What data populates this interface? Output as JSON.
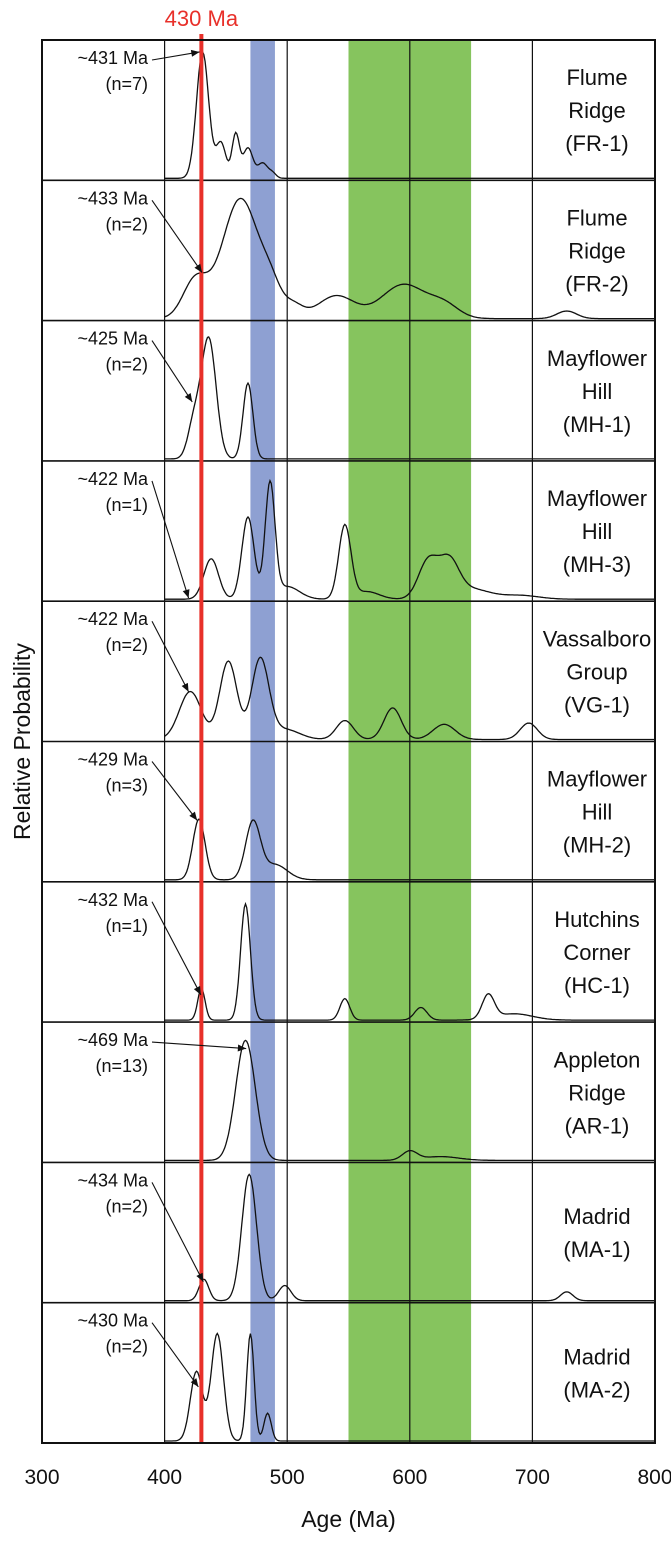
{
  "chart_data": {
    "type": "line",
    "xlabel": "Age (Ma)",
    "ylabel": "Relative Probability",
    "xlim": [
      300,
      800
    ],
    "x_ticks": [
      "300",
      "400",
      "500",
      "600",
      "700",
      "800"
    ],
    "grid": "vertical lines at 400, 500, 600, 700 Ma",
    "reference_line": {
      "x": 430,
      "label": "430 Ma",
      "color": "#e8302a"
    },
    "shaded_bands": [
      {
        "from": 470,
        "to": 490,
        "color": "#8ea0d2"
      },
      {
        "from": 550,
        "to": 650,
        "color": "#86c45e"
      }
    ],
    "series": [
      {
        "label_lines": [
          "Flume",
          "Ridge",
          "(FR-1)"
        ],
        "annotation": [
          "~431 Ma",
          "(n=7)"
        ],
        "annotation_target": 431,
        "peaks": [
          [
            431,
            1.0,
            5
          ],
          [
            446,
            0.28,
            4
          ],
          [
            458,
            0.35,
            3
          ],
          [
            468,
            0.24,
            4
          ],
          [
            480,
            0.12,
            4
          ],
          [
            488,
            0.04,
            3
          ]
        ]
      },
      {
        "label_lines": [
          "Flume",
          "Ridge",
          "(FR-2)"
        ],
        "annotation": [
          "~433 Ma",
          "(n=2)"
        ],
        "annotation_target": 433,
        "peaks": [
          [
            425,
            0.3,
            10
          ],
          [
            462,
            0.95,
            15
          ],
          [
            487,
            0.18,
            8
          ],
          [
            505,
            0.1,
            8
          ],
          [
            540,
            0.18,
            15
          ],
          [
            595,
            0.27,
            18
          ],
          [
            628,
            0.1,
            12
          ],
          [
            728,
            0.06,
            8
          ]
        ]
      },
      {
        "label_lines": [
          "Mayflower",
          "Hill",
          "(MH-1)"
        ],
        "annotation": [
          "~425 Ma",
          "(n=2)"
        ],
        "annotation_target": 425,
        "peaks": [
          [
            424,
            0.28,
            5
          ],
          [
            436,
            0.95,
            6
          ],
          [
            468,
            0.6,
            4
          ]
        ]
      },
      {
        "label_lines": [
          "Mayflower",
          "Hill",
          "(MH-3)"
        ],
        "annotation": [
          "~422 Ma",
          "(n=1)"
        ],
        "annotation_target": 422,
        "peaks": [
          [
            438,
            0.32,
            6
          ],
          [
            468,
            0.65,
            5
          ],
          [
            486,
            0.9,
            4
          ],
          [
            500,
            0.1,
            10
          ],
          [
            547,
            0.58,
            5
          ],
          [
            565,
            0.06,
            10
          ],
          [
            615,
            0.3,
            8
          ],
          [
            632,
            0.28,
            8
          ],
          [
            650,
            0.08,
            15
          ],
          [
            690,
            0.03,
            15
          ]
        ]
      },
      {
        "label_lines": [
          "Vassalboro",
          "Group",
          "(VG-1)"
        ],
        "annotation": [
          "~422 Ma",
          "(n=2)"
        ],
        "annotation_target": 422,
        "peaks": [
          [
            421,
            0.38,
            9
          ],
          [
            452,
            0.62,
            7
          ],
          [
            478,
            0.63,
            7
          ],
          [
            498,
            0.08,
            12
          ],
          [
            547,
            0.15,
            7
          ],
          [
            586,
            0.25,
            7
          ],
          [
            628,
            0.12,
            9
          ],
          [
            697,
            0.13,
            7
          ]
        ]
      },
      {
        "label_lines": [
          "Mayflower",
          "Hill",
          "(MH-2)"
        ],
        "annotation": [
          "~429 Ma",
          "(n=3)"
        ],
        "annotation_target": 429,
        "peaks": [
          [
            428,
            0.48,
            5
          ],
          [
            472,
            0.45,
            6
          ],
          [
            490,
            0.12,
            10
          ]
        ]
      },
      {
        "label_lines": [
          "Hutchins",
          "Corner",
          "(HC-1)"
        ],
        "annotation": [
          "~432 Ma",
          "(n=1)"
        ],
        "annotation_target": 432,
        "peaks": [
          [
            430,
            0.25,
            3
          ],
          [
            466,
            0.92,
            4
          ],
          [
            547,
            0.17,
            4
          ],
          [
            609,
            0.1,
            5
          ],
          [
            664,
            0.19,
            5
          ],
          [
            685,
            0.05,
            15
          ]
        ]
      },
      {
        "label_lines": [
          "Appleton",
          "Ridge",
          "(AR-1)"
        ],
        "annotation": [
          "~469 Ma",
          "(n=13)"
        ],
        "annotation_target": 469,
        "peaks": [
          [
            466,
            0.95,
            8
          ],
          [
            600,
            0.07,
            6
          ],
          [
            625,
            0.03,
            15
          ]
        ]
      },
      {
        "label_lines": [
          "Madrid",
          "(MA-1)"
        ],
        "annotation": [
          "~434 Ma",
          "(n=2)"
        ],
        "annotation_target": 434,
        "peaks": [
          [
            432,
            0.17,
            4
          ],
          [
            469,
            1.0,
            6
          ],
          [
            498,
            0.12,
            5
          ],
          [
            728,
            0.07,
            5
          ]
        ]
      },
      {
        "label_lines": [
          "Madrid",
          "(MA-2)"
        ],
        "annotation": [
          "~430 Ma",
          "(n=2)"
        ],
        "annotation_target": 430,
        "peaks": [
          [
            426,
            0.55,
            5
          ],
          [
            443,
            0.85,
            5
          ],
          [
            470,
            0.85,
            3
          ],
          [
            484,
            0.22,
            3
          ]
        ]
      }
    ]
  }
}
